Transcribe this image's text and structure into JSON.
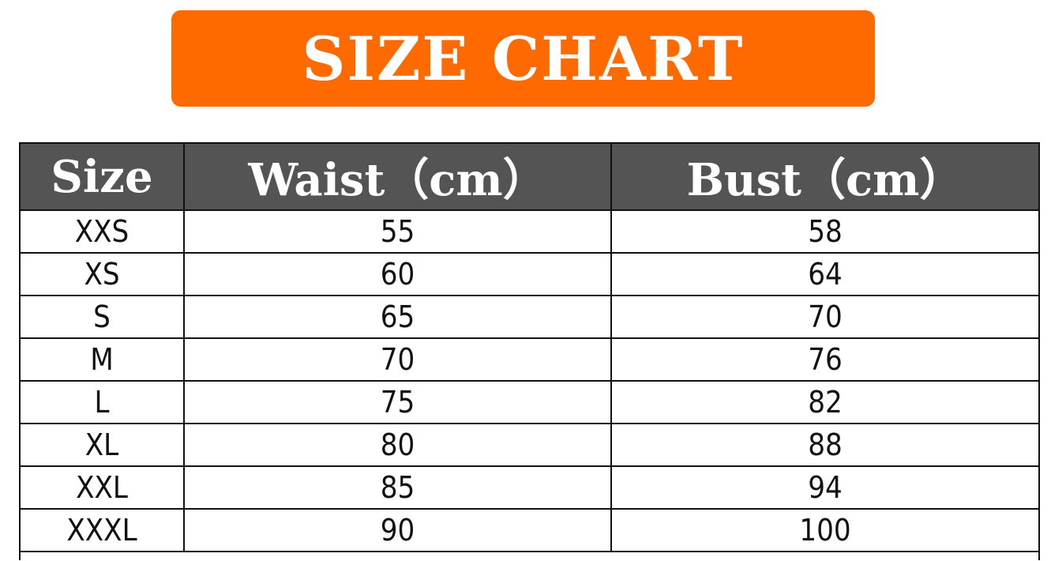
{
  "title": "SIZE CHART",
  "colors": {
    "title_bg": "#ff6a00",
    "header_bg": "#545454",
    "header_text": "#ffffff"
  },
  "chart_data": {
    "type": "table",
    "columns": [
      "Size",
      "Waist（cm）",
      "Bust（cm）"
    ],
    "rows": [
      [
        "XXS",
        "55",
        "58"
      ],
      [
        "XS",
        "60",
        "64"
      ],
      [
        "S",
        "65",
        "70"
      ],
      [
        "M",
        "70",
        "76"
      ],
      [
        "L",
        "75",
        "82"
      ],
      [
        "XL",
        "80",
        "88"
      ],
      [
        "XXL",
        "85",
        "94"
      ],
      [
        "XXXL",
        "90",
        "100"
      ]
    ]
  }
}
